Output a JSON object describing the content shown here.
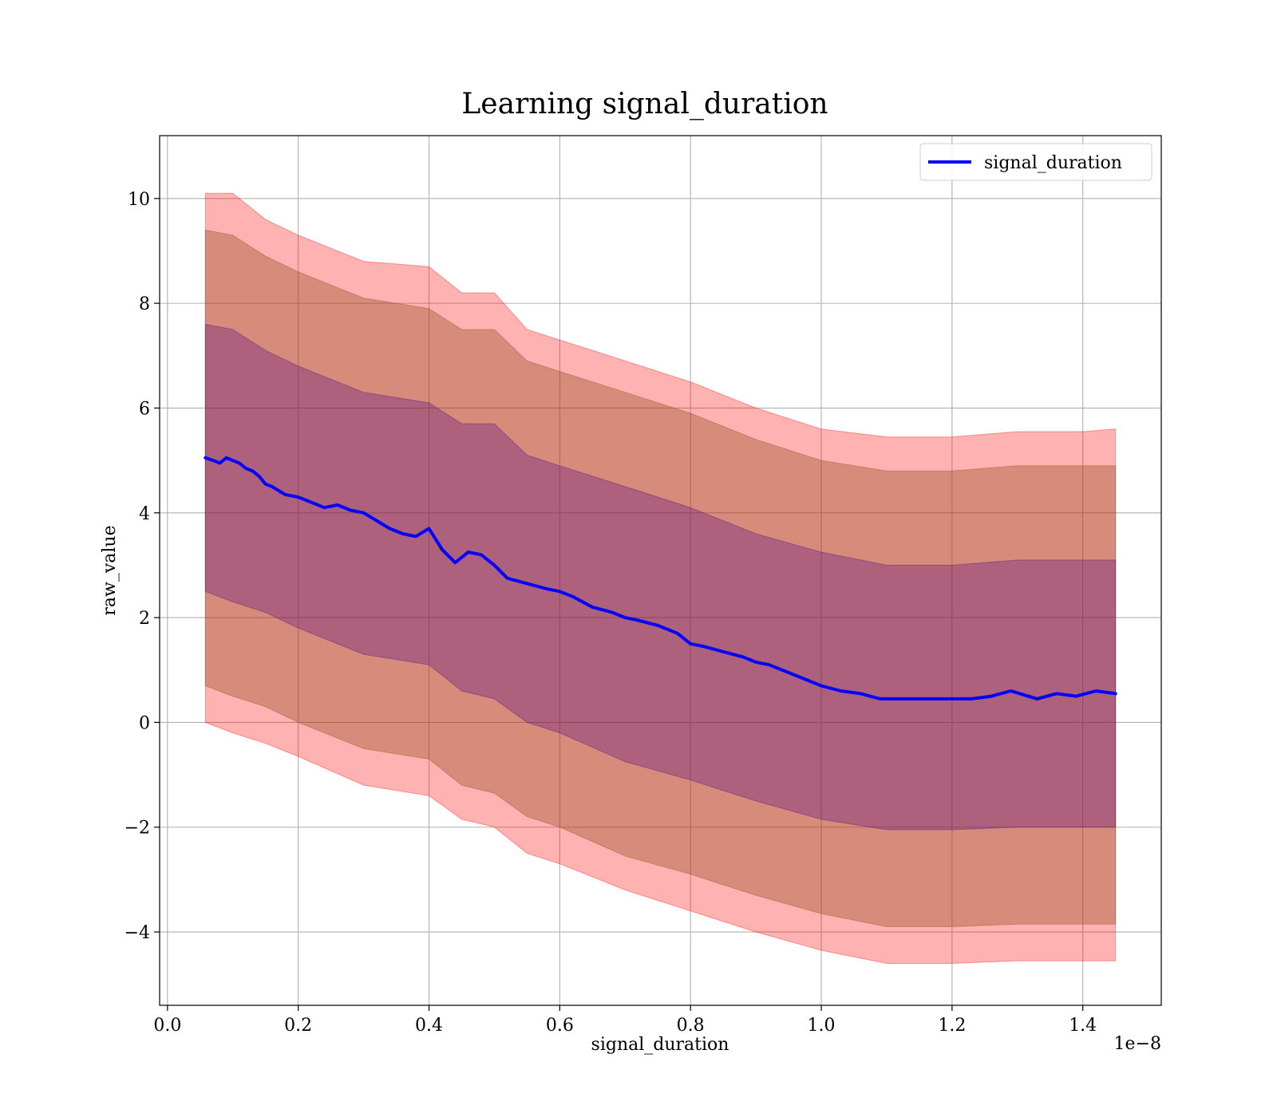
{
  "chart_data": {
    "type": "line",
    "title": "Learning signal_duration",
    "xlabel": "signal_duration",
    "ylabel": "raw_value",
    "x_offset_text": "1e−8",
    "xlim": [
      -0.012,
      1.52
    ],
    "ylim": [
      -5.4,
      11.2
    ],
    "x_ticks": [
      0.0,
      0.2,
      0.4,
      0.6,
      0.8,
      1.0,
      1.2,
      1.4
    ],
    "x_tick_labels": [
      "0.0",
      "0.2",
      "0.4",
      "0.6",
      "0.8",
      "1.0",
      "1.2",
      "1.4"
    ],
    "y_ticks": [
      -4,
      -2,
      0,
      2,
      4,
      6,
      8,
      10
    ],
    "y_tick_labels": [
      "−4",
      "−2",
      "0",
      "2",
      "4",
      "6",
      "8",
      "10"
    ],
    "grid": true,
    "legend_position": "top-right",
    "series": [
      {
        "name": "signal_duration",
        "color": "#0000ff",
        "x": [
          0.058,
          0.07,
          0.08,
          0.09,
          0.1,
          0.11,
          0.12,
          0.13,
          0.14,
          0.15,
          0.16,
          0.18,
          0.2,
          0.22,
          0.24,
          0.26,
          0.28,
          0.3,
          0.32,
          0.34,
          0.36,
          0.38,
          0.4,
          0.41,
          0.42,
          0.44,
          0.46,
          0.48,
          0.5,
          0.52,
          0.55,
          0.58,
          0.6,
          0.62,
          0.65,
          0.68,
          0.7,
          0.72,
          0.75,
          0.78,
          0.8,
          0.82,
          0.85,
          0.88,
          0.9,
          0.92,
          0.95,
          0.98,
          1.0,
          1.03,
          1.06,
          1.09,
          1.12,
          1.15,
          1.18,
          1.21,
          1.23,
          1.26,
          1.29,
          1.33,
          1.36,
          1.39,
          1.42,
          1.45
        ],
        "y": [
          5.05,
          5.0,
          4.95,
          5.05,
          5.0,
          4.95,
          4.85,
          4.8,
          4.7,
          4.55,
          4.5,
          4.35,
          4.3,
          4.2,
          4.1,
          4.15,
          4.05,
          4.0,
          3.85,
          3.7,
          3.6,
          3.55,
          3.7,
          3.5,
          3.3,
          3.05,
          3.25,
          3.2,
          3.0,
          2.75,
          2.65,
          2.55,
          2.5,
          2.4,
          2.2,
          2.1,
          2.0,
          1.95,
          1.85,
          1.7,
          1.5,
          1.45,
          1.35,
          1.25,
          1.15,
          1.1,
          0.95,
          0.8,
          0.7,
          0.6,
          0.55,
          0.45,
          0.45,
          0.45,
          0.45,
          0.45,
          0.45,
          0.5,
          0.6,
          0.45,
          0.55,
          0.5,
          0.6,
          0.55
        ]
      }
    ],
    "bands": [
      {
        "color": "#ff0000",
        "opacity": 0.3,
        "x": [
          0.058,
          0.1,
          0.15,
          0.2,
          0.3,
          0.4,
          0.45,
          0.5,
          0.55,
          0.6,
          0.7,
          0.8,
          0.9,
          1.0,
          1.1,
          1.2,
          1.3,
          1.4,
          1.45
        ],
        "upper": [
          10.1,
          10.1,
          9.6,
          9.3,
          8.8,
          8.7,
          8.2,
          8.2,
          7.5,
          7.3,
          6.9,
          6.5,
          6.0,
          5.6,
          5.45,
          5.45,
          5.55,
          5.55,
          5.6
        ],
        "lower": [
          0.0,
          -0.2,
          -0.4,
          -0.65,
          -1.2,
          -1.4,
          -1.85,
          -2.0,
          -2.5,
          -2.7,
          -3.2,
          -3.6,
          -4.0,
          -4.35,
          -4.6,
          -4.6,
          -4.55,
          -4.55,
          -4.55
        ]
      },
      {
        "color": "#8b4513",
        "opacity": 0.35,
        "x": [
          0.058,
          0.1,
          0.15,
          0.2,
          0.3,
          0.4,
          0.45,
          0.5,
          0.55,
          0.6,
          0.7,
          0.8,
          0.9,
          1.0,
          1.1,
          1.2,
          1.3,
          1.4,
          1.45
        ],
        "upper": [
          9.4,
          9.3,
          8.9,
          8.6,
          8.1,
          7.9,
          7.5,
          7.5,
          6.9,
          6.7,
          6.3,
          5.9,
          5.4,
          5.0,
          4.8,
          4.8,
          4.9,
          4.9,
          4.9
        ],
        "lower": [
          0.7,
          0.5,
          0.3,
          0.0,
          -0.5,
          -0.7,
          -1.2,
          -1.35,
          -1.8,
          -2.0,
          -2.55,
          -2.9,
          -3.3,
          -3.65,
          -3.9,
          -3.9,
          -3.85,
          -3.85,
          -3.85
        ]
      },
      {
        "color": "#4b0082",
        "opacity": 0.3,
        "x": [
          0.058,
          0.1,
          0.15,
          0.2,
          0.3,
          0.4,
          0.45,
          0.5,
          0.55,
          0.6,
          0.7,
          0.8,
          0.9,
          1.0,
          1.1,
          1.2,
          1.3,
          1.4,
          1.45
        ],
        "upper": [
          7.6,
          7.5,
          7.1,
          6.8,
          6.3,
          6.1,
          5.7,
          5.7,
          5.1,
          4.9,
          4.5,
          4.1,
          3.6,
          3.25,
          3.0,
          3.0,
          3.1,
          3.1,
          3.1
        ],
        "lower": [
          2.5,
          2.3,
          2.1,
          1.8,
          1.3,
          1.1,
          0.6,
          0.45,
          0.0,
          -0.2,
          -0.75,
          -1.1,
          -1.5,
          -1.85,
          -2.05,
          -2.05,
          -2.0,
          -2.0,
          -2.0
        ]
      }
    ]
  }
}
